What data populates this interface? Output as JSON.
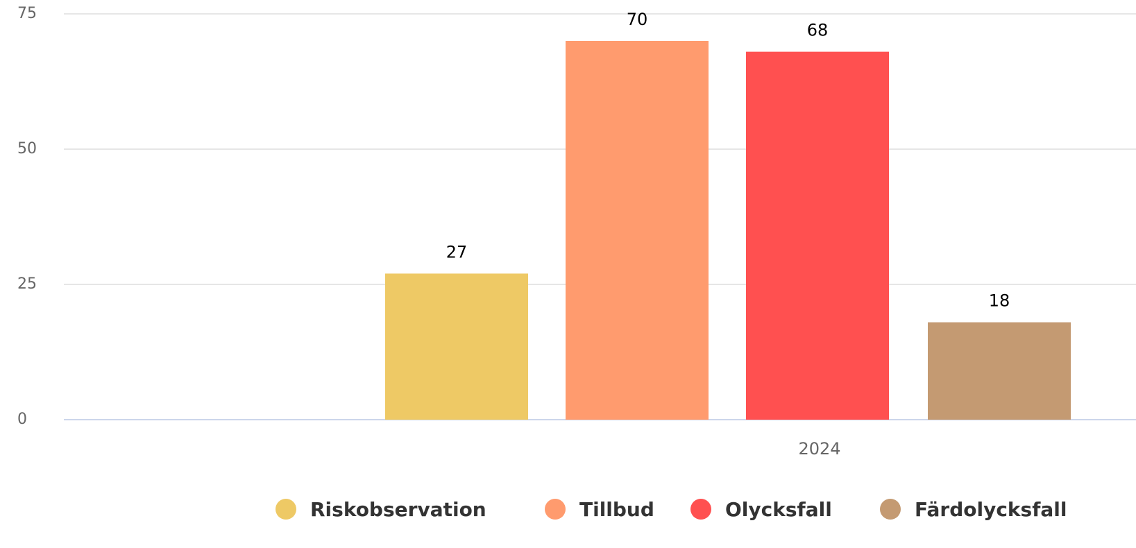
{
  "chart_data": {
    "type": "bar",
    "categories": [
      "2024"
    ],
    "series": [
      {
        "name": "Riskobservation",
        "color": "#eec965",
        "values": [
          27
        ]
      },
      {
        "name": "Tillbud",
        "color": "#ff9b6e",
        "values": [
          70
        ]
      },
      {
        "name": "Olycksfall",
        "color": "#ff5050",
        "values": [
          68
        ]
      },
      {
        "name": "Färdolycksfall",
        "color": "#c49a72",
        "values": [
          18
        ]
      }
    ],
    "ylim": [
      0,
      75
    ],
    "yticks": [
      0,
      25,
      50,
      75
    ],
    "grid": true,
    "legend": "bottom"
  }
}
